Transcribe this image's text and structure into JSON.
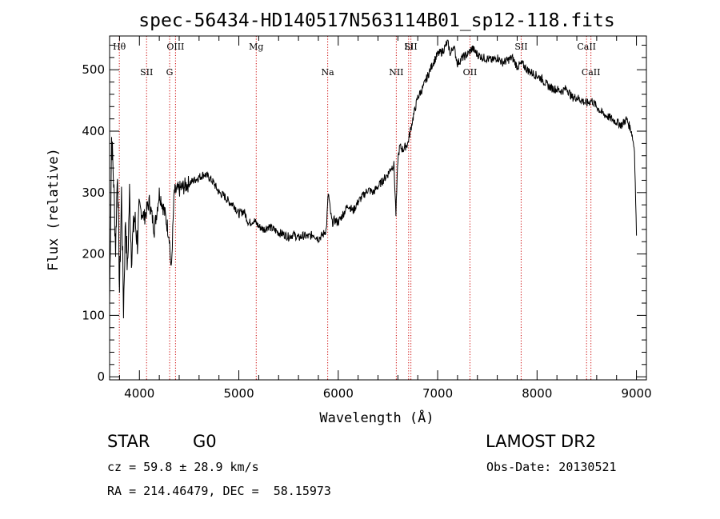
{
  "chart_data": {
    "type": "line",
    "title": "spec-56434-HD140517N563114B01_sp12-118.fits",
    "xlabel": "Wavelength (Å)",
    "ylabel": "Flux (relative)",
    "xlim": [
      3700,
      9100
    ],
    "ylim": [
      -5,
      555
    ],
    "xticks": [
      4000,
      5000,
      6000,
      7000,
      8000,
      9000
    ],
    "yticks": [
      0,
      100,
      200,
      300,
      400,
      500
    ],
    "grid": false,
    "line_color": "#000000",
    "marker_color": "#cc0000",
    "series": [
      {
        "x": [
          3700,
          3720,
          3740,
          3760,
          3780,
          3800,
          3820,
          3840,
          3860,
          3880,
          3900,
          3920,
          3950,
          3980,
          4000,
          4050,
          4100,
          4150,
          4200,
          4250,
          4300,
          4320,
          4350,
          4400,
          4450,
          4500,
          4550,
          4600,
          4650,
          4700,
          4750,
          4800,
          4850,
          4900,
          4950,
          5000,
          5050,
          5100,
          5150,
          5200,
          5250,
          5300,
          5350,
          5400,
          5450,
          5500,
          5550,
          5600,
          5650,
          5700,
          5750,
          5800,
          5850,
          5880,
          5900,
          5920,
          5940,
          5960,
          6000,
          6050,
          6100,
          6150,
          6200,
          6250,
          6300,
          6350,
          6400,
          6450,
          6500,
          6530,
          6560,
          6580,
          6600,
          6620,
          6650,
          6700,
          6750,
          6800,
          6850,
          6900,
          6950,
          7000,
          7050,
          7100,
          7130,
          7160,
          7200,
          7250,
          7300,
          7350,
          7400,
          7450,
          7500,
          7550,
          7600,
          7650,
          7700,
          7750,
          7800,
          7850,
          7900,
          7950,
          8000,
          8050,
          8100,
          8150,
          8200,
          8250,
          8300,
          8350,
          8400,
          8450,
          8500,
          8550,
          8600,
          8650,
          8700,
          8750,
          8800,
          8850,
          8900,
          8950,
          8980,
          9000
        ],
        "y": [
          120,
          390,
          320,
          210,
          340,
          140,
          300,
          110,
          260,
          170,
          300,
          200,
          260,
          220,
          275,
          260,
          285,
          240,
          300,
          270,
          230,
          170,
          300,
          305,
          310,
          315,
          320,
          325,
          330,
          325,
          315,
          300,
          295,
          285,
          280,
          265,
          270,
          250,
          255,
          245,
          240,
          245,
          240,
          235,
          232,
          228,
          232,
          226,
          230,
          228,
          232,
          225,
          232,
          240,
          300,
          270,
          250,
          255,
          252,
          265,
          280,
          270,
          285,
          295,
          305,
          300,
          310,
          320,
          330,
          340,
          345,
          265,
          355,
          375,
          370,
          380,
          420,
          455,
          470,
          490,
          510,
          525,
          530,
          545,
          525,
          540,
          510,
          520,
          525,
          535,
          525,
          520,
          518,
          515,
          520,
          512,
          515,
          520,
          505,
          510,
          500,
          495,
          490,
          485,
          475,
          470,
          468,
          465,
          470,
          455,
          455,
          450,
          445,
          450,
          440,
          430,
          425,
          420,
          415,
          410,
          420,
          400,
          370,
          230
        ]
      }
    ],
    "line_markers": [
      {
        "label": "Hθ",
        "x": 3798
      },
      {
        "label": "SII",
        "x": 4072
      },
      {
        "label": "OIII",
        "x": 4363
      },
      {
        "label": "G",
        "x": 4304
      },
      {
        "label": "Mg",
        "x": 5175
      },
      {
        "label": "Na",
        "x": 5894
      },
      {
        "label": "Li",
        "x": 6708
      },
      {
        "label": "NII",
        "x": 6584
      },
      {
        "label": "SII",
        "x": 6731
      },
      {
        "label": "OII",
        "x": 7325
      },
      {
        "label": "SII",
        "x": 7840
      },
      {
        "label": "CaII",
        "x": 8542
      },
      {
        "label": "CaII",
        "x": 8498
      }
    ]
  },
  "info": {
    "obj_type": "STAR",
    "subclass": "G0",
    "survey": "LAMOST DR2",
    "cz": "cz = 59.8 ± 28.9 km/s",
    "obs_date": "Obs-Date: 20130521",
    "radec": "RA = 214.46479, DEC =  58.15973"
  }
}
